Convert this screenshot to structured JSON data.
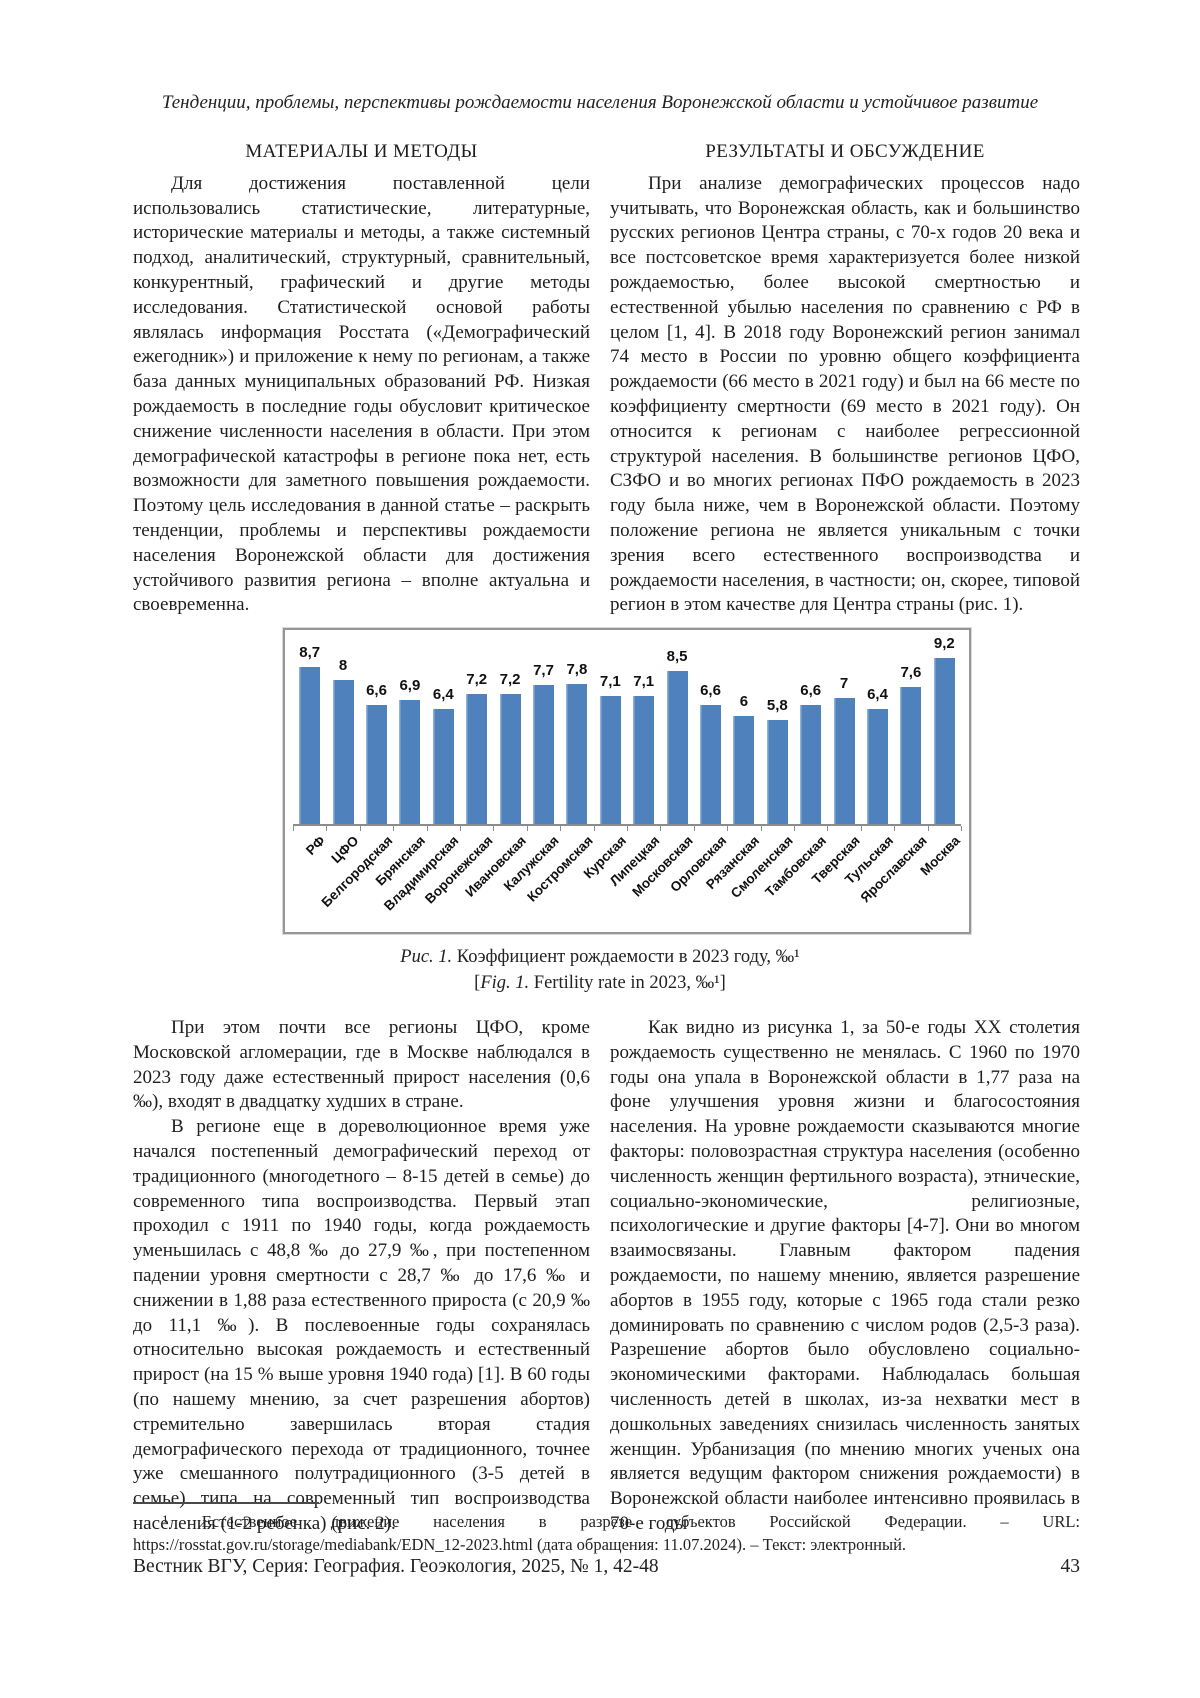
{
  "page": {
    "running_head": "Тенденции, проблемы, перспективы рождаемости населения Воронежской области и устойчивое развитие",
    "footer_left": "Вестник ВГУ, Серия: География. Геоэкология, 2025, № 1, 42-48",
    "page_number": "43"
  },
  "left_column": {
    "heading": "МАТЕРИАЛЫ И МЕТОДЫ",
    "paragraphs": [
      "Для достижения поставленной цели использовались статистические, литературные, исторические материалы и методы, а также системный подход, аналитический, структурный, сравнительный, конкурентный, графический и другие методы исследования. Статистической основой работы являлась информация Росстата («Демографический ежегодник») и приложение к нему по регионам, а также база данных муниципальных образований РФ. Низкая рождаемость в последние годы обусловит критическое снижение численности населения в области. При этом демографической катастрофы в регионе пока нет, есть возможности для заметного повышения рождаемости. Поэтому цель исследования в данной статье – раскрыть тенденции, проблемы и перспективы рождаемости населения Воронежской области для достижения устойчивого развития региона – вполне актуальна и своевременна."
    ]
  },
  "right_column": {
    "heading": "РЕЗУЛЬТАТЫ И ОБСУЖДЕНИЕ",
    "paragraphs": [
      "При анализе демографических процессов надо учитывать, что Воронежская область, как и большинство русских регионов Центра страны, с 70-х годов 20 века и все постсоветское время характеризуется более низкой рождаемостью, более высокой смертностью и естественной убылью населения по сравнению с РФ в целом [1, 4]. В 2018 году Воронежский регион занимал 74 место в России по уровню общего коэффициента рождаемости (66 место в 2021 году) и был на 66 месте по коэффициенту смертности (69 место в 2021 году). Он относится к регионам с наиболее регрессионной структурой населения. В большинстве регионов ЦФО, СЗФО и во многих регионах ПФО рождаемость в 2023 году была ниже, чем в Воронежской области. Поэтому положение региона не является уникальным с точки зрения всего естественного воспроизводства и рождаемости населения, в частности; он, скорее, типовой регион в этом качестве для Центра страны (рис. 1)."
    ]
  },
  "lower_left": {
    "paragraphs": [
      "При этом почти все регионы ЦФО, кроме Московской агломерации, где в Москве наблюдался в 2023 году даже естественный прирост населения (0,6 ‰), входят в двадцатку худших в стране.",
      "В регионе еще в дореволюционное время уже начался постепенный демографический переход от традиционного (многодетного – 8-15 детей в семье) до современного типа воспроизводства. Первый этап проходил с 1911 по 1940 годы, когда рождаемость уменьшилась с 48,8 ‰ до 27,9 ‰, при постепенном падении уровня смертности с 28,7 ‰ до 17,6 ‰ и снижении в 1,88 раза естественного прироста (с 20,9 ‰ до 11,1 ‰). В послевоенные годы сохранялась относительно высокая рождаемость и естественный прирост (на 15 % выше уровня 1940 года) [1]. В 60 годы (по нашему мнению, за счет разрешения абортов) стремительно завершилась вторая стадия демографического перехода от традиционного, точнее уже смешанного полутрадиционного (3-5 детей в семье) типа на современный тип воспроизводства населения (1-2 ребенка) (рис. 2)."
    ]
  },
  "lower_right": {
    "paragraphs": [
      "Как видно из рисунка 1, за 50-е годы XX столетия рождаемость существенно не менялась. С 1960 по 1970 годы она упала в Воронежской области в 1,77 раза на фоне улучшения уровня жизни и благосостояния населения. На уровне рождаемости сказываются многие факторы: половозрастная структура населения (особенно численность женщин фертильного возраста), этнические, социально-экономические, религиозные, психологические и другие факторы [4-7]. Они во многом взаимосвязаны. Главным фактором падения рождаемости, по нашему мнению, является разрешение абортов в 1955 году, которые с 1965 года стали резко доминировать по сравнению с числом родов (2,5-3 раза). Разрешение абортов было обусловлено социально-экономическими факторами. Наблюдалась большая численность детей в школах, из-за нехватки мест в дошкольных заведениях снизилась численность занятых женщин. Урбанизация (по мнению многих ученых она является ведущим фактором снижения рождаемости) в Воронежской области наиболее интенсивно проявилась в 70-е годы"
    ]
  },
  "figure": {
    "caption_ru_label": "Рис. 1.",
    "caption_ru_text": "Коэффициент рождаемости в 2023 году, ‰¹",
    "caption_en_open": "[",
    "caption_en_label": "Fig. 1.",
    "caption_en_text": "Fertility rate in 2023, ‰¹]"
  },
  "footnote": {
    "text": "¹ Естественное движение населения в разрезе субъектов Российской Федерации. – URL: https://rosstat.gov.ru/storage/mediabank/EDN_12-2023.html (дата обращения: 11.07.2024). – Текст: электронный."
  },
  "chart_data": {
    "type": "bar",
    "title": "",
    "categories": [
      "РФ",
      "ЦФО",
      "Белгородская",
      "Брянская",
      "Владимирская",
      "Воронежская",
      "Ивановская",
      "Калужская",
      "Костромская",
      "Курская",
      "Липецкая",
      "Московская",
      "Орловская",
      "Рязанская",
      "Смоленская",
      "Тамбовская",
      "Тверская",
      "Тульская",
      "Ярославская",
      "Москва"
    ],
    "values": [
      8.7,
      8,
      6.6,
      6.9,
      6.4,
      7.2,
      7.2,
      7.7,
      7.8,
      7.1,
      7.1,
      8.5,
      6.6,
      6,
      5.8,
      6.6,
      7,
      6.4,
      7.6,
      9.2
    ],
    "value_labels": [
      "8,7",
      "8",
      "6,6",
      "6,9",
      "6,4",
      "7,2",
      "7,2",
      "7,7",
      "7,8",
      "7,1",
      "7,1",
      "8,5",
      "6,6",
      "6",
      "5,8",
      "6,6",
      "7",
      "6,4",
      "7,6",
      "9,2"
    ],
    "unit": "‰",
    "bar_color": "#4f81bd",
    "ylim": [
      0,
      10.8
    ],
    "grid": false,
    "legend": false,
    "xlabel": "",
    "ylabel": ""
  }
}
